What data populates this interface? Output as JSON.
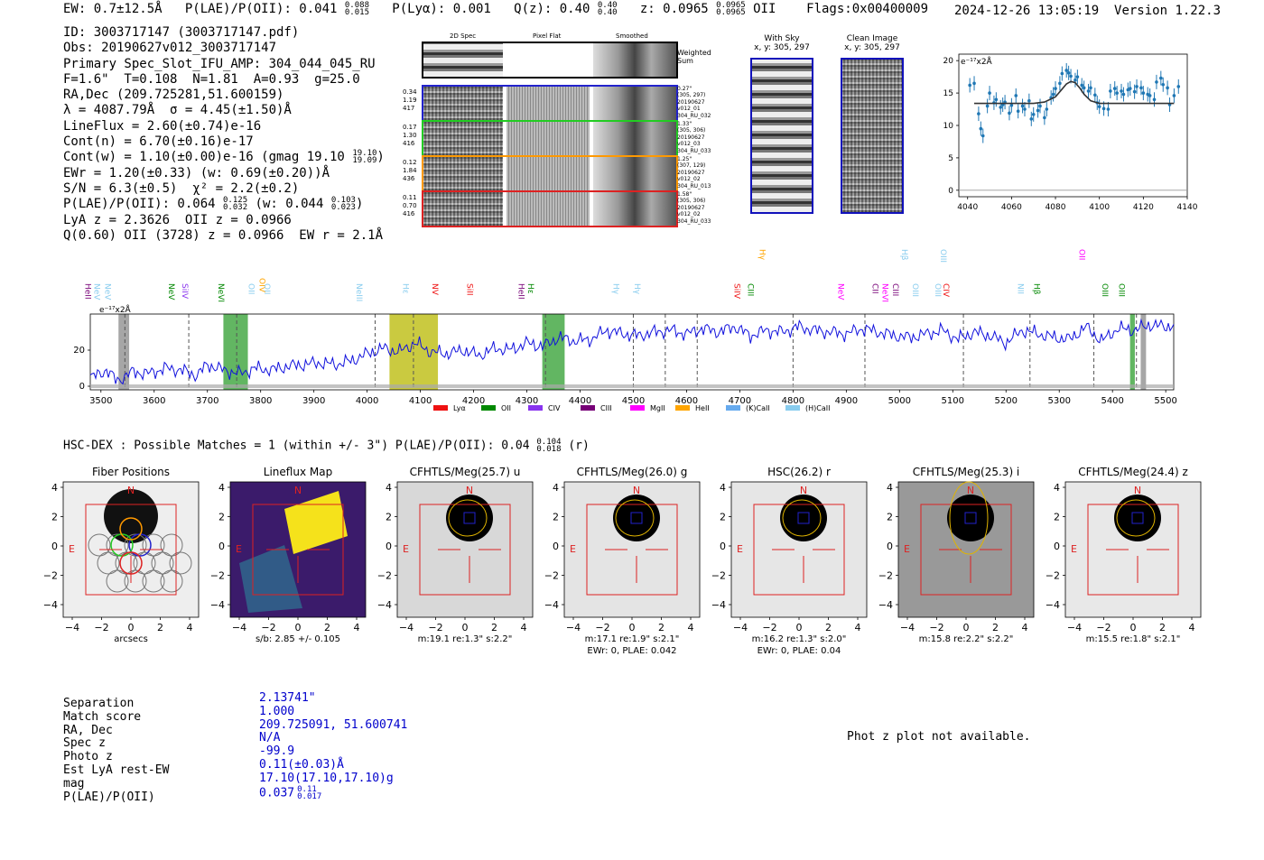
{
  "header": {
    "ew": "EW: 0.7±12.5Å",
    "plae_label": "P(LAE)/P(OII): 0.041",
    "plae_hi": "0.088",
    "plae_lo": "0.015",
    "plya": "P(Lyα): 0.001",
    "qz_label": "Q(z): 0.40",
    "qz_hi": "0.40",
    "qz_lo": "0.40",
    "z_label": "z: 0.0965",
    "z_hi": "0.0965",
    "z_lo": "0.0965",
    "z_line": "OII",
    "flags": "Flags:0x00400009",
    "datetime": "2024-12-26 13:05:19",
    "version": "Version 1.22.3"
  },
  "info": {
    "id": "ID: 3003717147 (3003717147.pdf)",
    "obs": "Obs: 20190627v012_3003717147",
    "primary": "Primary Spec_Slot_IFU_AMP: 304_044_045_RU",
    "fiber": "F=1.6\"  T=0.108  N=1.81  A=0.93  g=25.0",
    "radec": "RA,Dec (209.725281,51.600159)",
    "lambda": "λ = 4087.79Å  σ = 4.45(±1.50)Å",
    "lineflux": "LineFlux = 2.60(±0.74)e-16",
    "contn": "Cont(n) = 6.70(±0.16)e-17",
    "contw": "Cont(w) = 1.10(±0.00)e-16 (gmag 19.10",
    "contw_hi": "19.10",
    "contw_lo": "19.09",
    "ewr": "EWr = 1.20(±0.33) (w: 0.69(±0.20))Å",
    "sn": "S/N = 6.3(±0.5)  χ² = 2.2(±0.2)",
    "plae": "P(LAE)/P(OII): 0.064",
    "plae_hi": "0.125",
    "plae_lo": "0.032",
    "plae_w": "(w: 0.044",
    "plae_w_hi": "0.103",
    "plae_w_lo": "0.023",
    "lya_z": "LyA z = 2.3626  OII z = 0.0966",
    "q_line": "Q(0.60) OII (3728) z = 0.0966  EW r = 2.1Å"
  },
  "cutouts": {
    "col_headers": [
      "2D Spec",
      "Pixel Flat",
      "Smoothed"
    ],
    "weighted": "Weighted Sum",
    "rows": [
      {
        "left": [
          "0.34",
          "1.19",
          "417"
        ],
        "right": [
          "0.27\"",
          "(305, 297)",
          "20190627",
          "v012_01",
          "304_RU_032"
        ],
        "color": "#2222cc"
      },
      {
        "left": [
          "0.17",
          "1.30",
          "416"
        ],
        "right": [
          "1.33\"",
          "(305, 306)",
          "20190627",
          "v012_03",
          "304_RU_033"
        ],
        "color": "#22cc22"
      },
      {
        "left": [
          "0.12",
          "1.84",
          "436"
        ],
        "right": [
          "1.25\"",
          "(307, 129)",
          "20190627",
          "v012_02",
          "304_RU_013"
        ],
        "color": "#ff9900"
      },
      {
        "left": [
          "0.11",
          "0.70",
          "416"
        ],
        "right": [
          "1.58\"",
          "(305, 306)",
          "20190627",
          "v012_02",
          "304_RU_033"
        ],
        "color": "#dd2222"
      }
    ],
    "with_sky_title": "With Sky",
    "with_sky_xy": "x, y: 305, 297",
    "clean_title": "Clean Image",
    "clean_xy": "x, y: 305, 297"
  },
  "zoom_plot": {
    "ylabel": "e⁻¹⁷x2Å",
    "xticks": [
      "4040",
      "4060",
      "4080",
      "4100",
      "4120",
      "4140"
    ],
    "yticks": [
      "0",
      "5",
      "10",
      "15",
      "20"
    ]
  },
  "chart_data": [
    {
      "type": "scatter",
      "title": "",
      "xlim": [
        4036,
        4140
      ],
      "ylim": [
        -1,
        21
      ],
      "series": [
        {
          "x": [
            4041,
            4043,
            4045,
            4046,
            4047,
            4049,
            4050,
            4052,
            4053,
            4055,
            4056,
            4057,
            4059,
            4060,
            4062,
            4063,
            4065,
            4066,
            4068,
            4069,
            4070,
            4072,
            4073,
            4075,
            4076,
            4078,
            4079,
            4080,
            4082,
            4083,
            4085,
            4086,
            4087,
            4089,
            4090,
            4092,
            4093,
            4095,
            4096,
            4098,
            4099,
            4100,
            4102,
            4104,
            4105,
            4107,
            4108,
            4110,
            4111,
            4113,
            4114,
            4116,
            4117,
            4119,
            4120,
            4122,
            4123,
            4125,
            4126,
            4128,
            4129,
            4131,
            4132,
            4134,
            4136
          ],
          "y": [
            16.2,
            16.5,
            11.8,
            9.5,
            8.4,
            13.0,
            15.0,
            13.5,
            14.0,
            12.8,
            13.2,
            13.6,
            11.9,
            13.1,
            14.6,
            12.2,
            13.0,
            12.5,
            13.8,
            11.0,
            11.7,
            12.3,
            13.0,
            11.2,
            12.5,
            14.3,
            14.8,
            15.7,
            16.5,
            18.0,
            18.5,
            18.1,
            17.6,
            17.0,
            17.5,
            16.2,
            15.8,
            15.3,
            15.8,
            14.7,
            13.5,
            12.9,
            12.6,
            12.5,
            15.3,
            15.7,
            15.0,
            15.3,
            14.8,
            15.5,
            15.7,
            15.2,
            16.0,
            15.8,
            15.0,
            14.8,
            14.6,
            14.0,
            16.7,
            17.3,
            16.3,
            15.8,
            13.2,
            14.6,
            16.0
          ]
        },
        {
          "name": "fit",
          "x": [
            4043,
            4060,
            4070,
            4075,
            4080,
            4083,
            4085,
            4087,
            4089,
            4091,
            4093,
            4096,
            4100,
            4110,
            4120,
            4134
          ],
          "y": [
            13.4,
            13.4,
            13.4,
            13.6,
            14.4,
            15.6,
            16.4,
            16.8,
            16.6,
            15.8,
            14.8,
            13.8,
            13.4,
            13.4,
            13.4,
            13.4
          ]
        }
      ]
    },
    {
      "type": "line",
      "title": "",
      "xlim": [
        3480,
        5515
      ],
      "ylim": [
        -2,
        40
      ],
      "xticks": [
        "3500",
        "3600",
        "3700",
        "3800",
        "3900",
        "4000",
        "4100",
        "4200",
        "4300",
        "4400",
        "4500",
        "4600",
        "4700",
        "4800",
        "4900",
        "5000",
        "5100",
        "5200",
        "5300",
        "5400",
        "5500"
      ],
      "yticks": [
        "0",
        "20"
      ],
      "ylabel": "e⁻¹⁷x2Å",
      "series": [
        {
          "x": [
            3485,
            3510,
            3530,
            3560,
            3590,
            3620,
            3650,
            3680,
            3700,
            3730,
            3760,
            3790,
            3820,
            3850,
            3880,
            3910,
            3940,
            3970,
            4000,
            4030,
            4060,
            4090,
            4120,
            4150,
            4180,
            4210,
            4240,
            4270,
            4300,
            4330,
            4360,
            4390,
            4420,
            4450,
            4480,
            4510,
            4540,
            4570,
            4600,
            4630,
            4660,
            4690,
            4720,
            4750,
            4780,
            4810,
            4840,
            4870,
            4900,
            4930,
            4960,
            4990,
            5020,
            5050,
            5080,
            5110,
            5140,
            5170,
            5200,
            5230,
            5260,
            5290,
            5320,
            5350,
            5380,
            5410,
            5440,
            5470,
            5500,
            5515
          ],
          "y": [
            5,
            9,
            3,
            8,
            7,
            10,
            9,
            6,
            12,
            9,
            7,
            10,
            9,
            11,
            12,
            13,
            12,
            14,
            18,
            21,
            19,
            24,
            19,
            18,
            20,
            17,
            21,
            20,
            24,
            22,
            27,
            25,
            26,
            31,
            29,
            28,
            30,
            31,
            29,
            32,
            30,
            33,
            28,
            31,
            30,
            33,
            31,
            30,
            29,
            32,
            30,
            28,
            27,
            29,
            31,
            26,
            30,
            28,
            24,
            31,
            29,
            27,
            26,
            33,
            25,
            32,
            31,
            34,
            33,
            34
          ]
        }
      ],
      "line_labels": [
        "HeII",
        "NeV",
        "NeV",
        "NeV",
        "SiIV",
        "NeVI",
        "OII",
        "OIV",
        "OII",
        "NeIII",
        "Hε",
        "NV",
        "SiII",
        "HeII",
        "Hε",
        "Hγ",
        "Hγ",
        "SiIV",
        "CIII",
        "Hγ",
        "NeV",
        "CII",
        "NeVI",
        "CIII",
        "Hβ",
        "OIII",
        "OIII",
        "OIII",
        "CIV",
        "NII",
        "Hβ",
        "OII",
        "OIII",
        "OIII"
      ],
      "legend": [
        "Lyα",
        "OII",
        "CIV",
        "CIII",
        "MgII",
        "HeII",
        "(K)CaII",
        "(H)CaII"
      ]
    }
  ],
  "legend_colors": {
    "lya": "#ee1111",
    "oii": "#008800",
    "civ": "#8833ee",
    "ciii": "#770077",
    "mgii": "#ff00ff",
    "heii": "#ffa500",
    "kcaii": "#66aaee",
    "hcaii": "#88ccee"
  },
  "hsc": {
    "prefix": "HSC-DEX : Possible Matches = 1 (within +/- 3\")  P(LAE)/P(OII): 0.04",
    "hi": "0.104",
    "lo": "0.018",
    "suffix": "(r)"
  },
  "imaging_panels": [
    {
      "title": "Fiber Positions",
      "caption1": "arcsecs",
      "caption2": ""
    },
    {
      "title": "Lineflux Map",
      "caption1": "s/b: 2.85 +/- 0.105",
      "caption2": ""
    },
    {
      "title": "CFHTLS/Meg(25.7) u",
      "caption1": "m:19.1  re:1.3\"  s:2.2\"",
      "caption2": ""
    },
    {
      "title": "CFHTLS/Meg(26.0) g",
      "caption1": "m:17.1  re:1.9\"  s:2.1\"",
      "caption2": "EWr: 0, PLAE: 0.042"
    },
    {
      "title": "HSC(26.2) r",
      "caption1": "m:16.2  re:1.3\"  s:2.0\"",
      "caption2": "EWr: 0, PLAE: 0.04"
    },
    {
      "title": "CFHTLS/Meg(25.3) i",
      "caption1": "m:15.8  re:2.2\"  s:2.2\"",
      "caption2": ""
    },
    {
      "title": "CFHTLS/Meg(24.4) z",
      "caption1": "m:15.5  re:1.8\"  s:2.1\"",
      "caption2": ""
    }
  ],
  "img_axis": {
    "yticks": [
      "4",
      "2",
      "0",
      "−2",
      "−4"
    ],
    "xticks": [
      "−4",
      "−2",
      "0",
      "2",
      "4"
    ],
    "n_label": "N",
    "e_label": "E"
  },
  "match": {
    "labels": [
      "Separation",
      "Match score",
      "RA, Dec",
      "Spec z",
      "Photo z",
      "Est LyA rest-EW",
      "mag",
      "P(LAE)/P(OII)"
    ],
    "values": [
      "2.13741\"",
      "1.000",
      "209.725091, 51.600741",
      "N/A",
      "-99.9",
      "0.11(±0.03)Å",
      "17.10(17.10,17.10)g",
      "0.037"
    ],
    "plae_hi": "0.11",
    "plae_lo": "0.017"
  },
  "photz_msg": "Phot z plot not available."
}
